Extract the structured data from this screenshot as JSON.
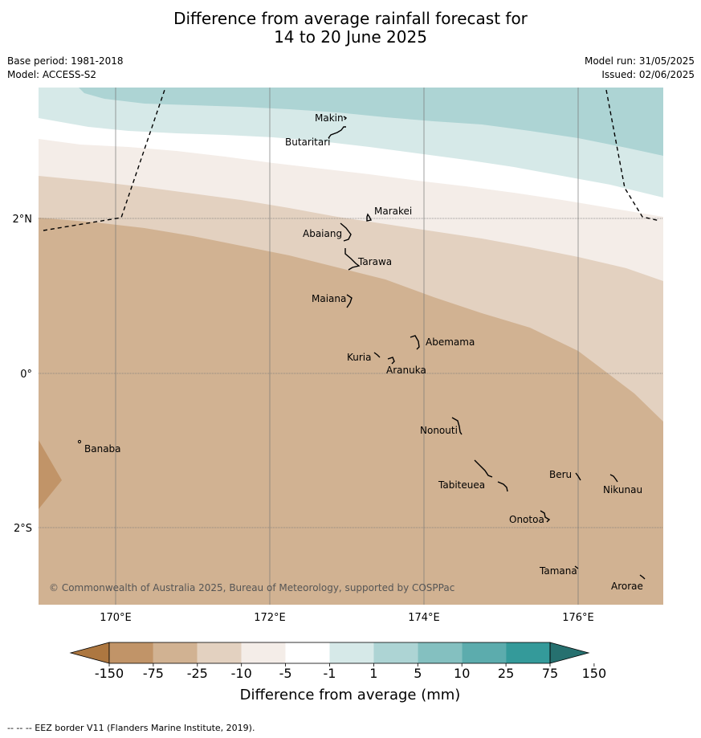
{
  "title_line1": "Difference from average rainfall forecast for",
  "title_line2": "14 to 20 June 2025",
  "base_period": "Base period: 1981-2018",
  "model": "Model: ACCESS-S2",
  "model_run": "Model run: 31/05/2025",
  "issued": "Issued: 02/06/2025",
  "copyright": "© Commonwealth of Australia 2025, Bureau of Meteorology, supported by COSPPac",
  "footer_note": "--  --  -- EEZ border V11 (Flanders Marine Institute, 2019).",
  "axes": {
    "lat_ticks": [
      "2°N",
      "0°",
      "2°S"
    ],
    "lon_ticks": [
      "170°E",
      "172°E",
      "174°E",
      "176°E"
    ]
  },
  "islands": [
    {
      "name": "Makin"
    },
    {
      "name": "Butaritari"
    },
    {
      "name": "Marakei"
    },
    {
      "name": "Abaiang"
    },
    {
      "name": "Tarawa"
    },
    {
      "name": "Maiana"
    },
    {
      "name": "Abemama"
    },
    {
      "name": "Kuria"
    },
    {
      "name": "Aranuka"
    },
    {
      "name": "Banaba"
    },
    {
      "name": "Nonouti"
    },
    {
      "name": "Beru"
    },
    {
      "name": "Nikunau"
    },
    {
      "name": "Tabiteuea"
    },
    {
      "name": "Onotoa"
    },
    {
      "name": "Tamana"
    },
    {
      "name": "Arorae"
    }
  ],
  "legend": {
    "title": "Difference from average (mm)",
    "ticks": [
      "-150",
      "-75",
      "-25",
      "-10",
      "-5",
      "-1",
      "1",
      "5",
      "10",
      "25",
      "75",
      "150"
    ],
    "colors": [
      "#ad7740",
      "#c19468",
      "#d1b292",
      "#e3d1c0",
      "#f4ede8",
      "#ffffff",
      "#d6e9e8",
      "#add4d4",
      "#84c0c0",
      "#5cacad",
      "#349a9a",
      "#26706f"
    ]
  }
}
